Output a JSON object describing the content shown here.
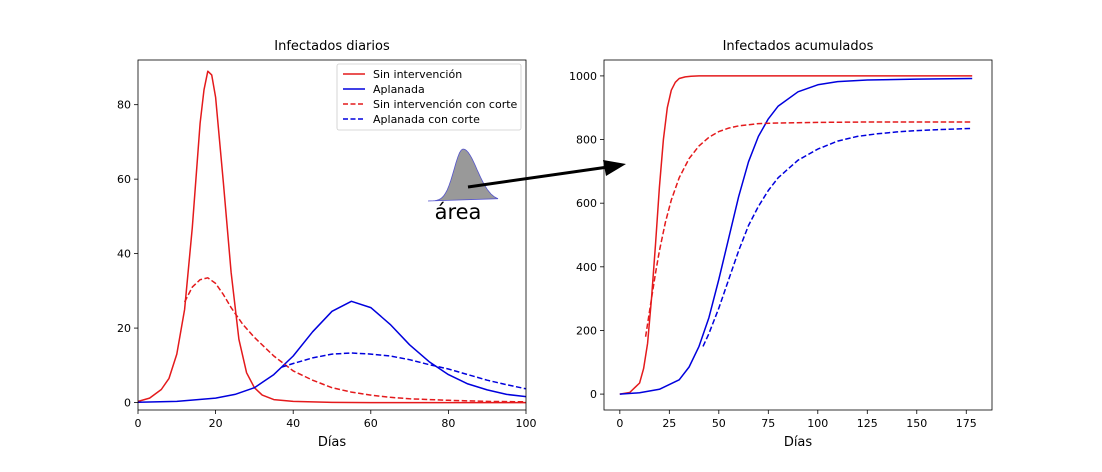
{
  "chart_data": [
    {
      "type": "line",
      "title": "Infectados diarios",
      "xlabel": "Días",
      "ylabel": "",
      "xlim": [
        0,
        100
      ],
      "ylim": [
        -2,
        92
      ],
      "xticks": [
        "0",
        "20",
        "40",
        "60",
        "80",
        "100"
      ],
      "yticks": [
        "0",
        "20",
        "40",
        "60",
        "80"
      ],
      "legend": {
        "placement": "top-right",
        "entries": [
          "Sin intervención",
          "Aplanada",
          "Sin intervención con corte",
          "Aplanada con corte"
        ]
      },
      "series": [
        {
          "name": "Sin intervención",
          "color": "#e41a1c",
          "style": "solid",
          "x": [
            0,
            3,
            6,
            8,
            10,
            12,
            14,
            16,
            17,
            18,
            19,
            20,
            22,
            24,
            26,
            28,
            30,
            32,
            35,
            40,
            50,
            60,
            80,
            100
          ],
          "y": [
            0.3,
            1.2,
            3.5,
            6.5,
            13,
            25,
            47,
            75,
            84,
            89,
            88,
            82,
            59,
            35,
            17,
            8,
            4,
            2,
            0.8,
            0.3,
            0.05,
            0,
            0,
            0
          ]
        },
        {
          "name": "Aplanada",
          "color": "#0000dd",
          "style": "solid",
          "x": [
            0,
            10,
            20,
            25,
            30,
            35,
            40,
            45,
            50,
            55,
            60,
            65,
            70,
            75,
            80,
            85,
            90,
            95,
            100
          ],
          "y": [
            0.1,
            0.3,
            1.2,
            2.2,
            4,
            7.5,
            12.5,
            19,
            24.5,
            27.2,
            25.5,
            21,
            15.5,
            11,
            7.5,
            5,
            3.4,
            2.2,
            1.6
          ]
        },
        {
          "name": "Sin intervención con corte",
          "color": "#e41a1c",
          "style": "dashed",
          "x": [
            12,
            14,
            16,
            18,
            20,
            22,
            24,
            27,
            30,
            35,
            40,
            45,
            50,
            55,
            60,
            65,
            70,
            80,
            90,
            100
          ],
          "y": [
            27,
            31,
            33,
            33.5,
            32,
            29,
            25.5,
            21,
            17.5,
            12.5,
            8.5,
            6,
            4,
            2.8,
            2,
            1.4,
            1,
            0.6,
            0.3,
            0.2
          ]
        },
        {
          "name": "Aplanada con corte",
          "color": "#0000dd",
          "style": "dashed",
          "x": [
            37,
            40,
            45,
            50,
            55,
            60,
            65,
            70,
            75,
            80,
            85,
            90,
            95,
            100
          ],
          "y": [
            9.5,
            10.5,
            12,
            13,
            13.3,
            13,
            12.5,
            11.5,
            10.2,
            9,
            7.5,
            6,
            4.8,
            3.7
          ]
        }
      ]
    },
    {
      "type": "line",
      "title": "Infectados acumulados",
      "xlabel": "Días",
      "ylabel": "",
      "xlim": [
        -8,
        188
      ],
      "ylim": [
        -50,
        1050
      ],
      "xticks": [
        "0",
        "25",
        "50",
        "75",
        "100",
        "125",
        "150",
        "175"
      ],
      "yticks": [
        "0",
        "200",
        "400",
        "600",
        "800",
        "1000"
      ],
      "series": [
        {
          "name": "Sin intervención",
          "color": "#e41a1c",
          "style": "solid",
          "x": [
            0,
            5,
            10,
            12,
            14,
            16,
            18,
            20,
            22,
            24,
            26,
            28,
            30,
            33,
            36,
            40,
            50,
            75,
            100,
            178
          ],
          "y": [
            0,
            5,
            35,
            80,
            160,
            300,
            470,
            650,
            800,
            900,
            955,
            980,
            992,
            997,
            999,
            1000,
            1000,
            1000,
            1000,
            1000
          ]
        },
        {
          "name": "Aplanada",
          "color": "#0000dd",
          "style": "solid",
          "x": [
            0,
            10,
            20,
            30,
            35,
            40,
            45,
            50,
            55,
            60,
            65,
            70,
            75,
            80,
            90,
            100,
            110,
            125,
            150,
            178
          ],
          "y": [
            0,
            4,
            15,
            45,
            85,
            150,
            240,
            360,
            490,
            620,
            730,
            810,
            865,
            905,
            950,
            972,
            982,
            987,
            990,
            992
          ]
        },
        {
          "name": "Sin intervención con corte",
          "color": "#e41a1c",
          "style": "dashed",
          "x": [
            13,
            15,
            18,
            20,
            23,
            26,
            30,
            35,
            40,
            45,
            50,
            55,
            60,
            70,
            80,
            100,
            125,
            150,
            178
          ],
          "y": [
            180,
            260,
            380,
            450,
            540,
            610,
            680,
            740,
            780,
            807,
            825,
            836,
            843,
            850,
            852,
            854,
            855,
            855,
            855
          ]
        },
        {
          "name": "Aplanada con corte",
          "color": "#0000dd",
          "style": "dashed",
          "x": [
            42,
            45,
            50,
            55,
            60,
            65,
            70,
            75,
            80,
            90,
            100,
            110,
            120,
            130,
            140,
            150,
            160,
            178
          ],
          "y": [
            150,
            190,
            270,
            360,
            450,
            530,
            590,
            640,
            680,
            735,
            770,
            795,
            810,
            818,
            824,
            828,
            831,
            835
          ]
        }
      ]
    }
  ],
  "annotation": {
    "label": "área",
    "fill": "#999999",
    "edge": "#5555cc"
  }
}
